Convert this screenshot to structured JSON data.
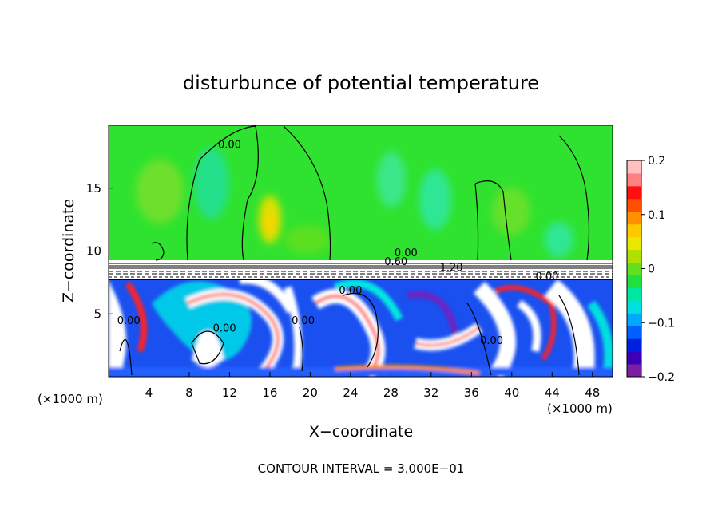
{
  "chart_data": {
    "type": "heatmap",
    "title": "disturbunce of potential temperature",
    "xlabel": "X−coordinate",
    "ylabel": "Z−coordinate",
    "x_unit_label": "(×1000 m)",
    "z_unit_label": "(×1000 m)",
    "xlim": [
      0,
      50
    ],
    "ylim": [
      0,
      20
    ],
    "x_ticks": [
      4,
      8,
      12,
      16,
      20,
      24,
      28,
      32,
      36,
      40,
      44,
      48
    ],
    "y_ticks": [
      5,
      10,
      15
    ],
    "colorbar": {
      "range": [
        -0.2,
        0.2
      ],
      "tick_values": [
        -0.2,
        -0.1,
        0,
        0.1,
        0.2
      ],
      "tick_labels": [
        "−0.2",
        "−0.1",
        "0",
        "0.1",
        "0.2"
      ],
      "colors": [
        "#7a1fa2",
        "#3a00b8",
        "#0020e0",
        "#0060ff",
        "#00a8ff",
        "#00e0e0",
        "#00e8a0",
        "#20e040",
        "#60e020",
        "#b0e000",
        "#e8e800",
        "#ffc800",
        "#ff9000",
        "#ff5000",
        "#ff1010",
        "#ff8080",
        "#ffc0c0"
      ]
    },
    "contour_labels": [
      {
        "text": "0.00",
        "x": 12,
        "z": 18.2
      },
      {
        "text": "0.00",
        "x": 29.5,
        "z": 9.6
      },
      {
        "text": "0.60",
        "x": 28.5,
        "z": 8.9
      },
      {
        "text": "1.20",
        "x": 34,
        "z": 8.4
      },
      {
        "text": "0.00",
        "x": 43.5,
        "z": 7.7
      },
      {
        "text": "0.00",
        "x": 24,
        "z": 6.6
      },
      {
        "text": "0.00",
        "x": 38,
        "z": 2.6
      },
      {
        "text": "0.00",
        "x": 2,
        "z": 4.2
      },
      {
        "text": "0.00",
        "x": 11.5,
        "z": 3.6
      },
      {
        "text": "0.00",
        "x": 19.3,
        "z": 4.2
      }
    ],
    "footer": "CONTOUR INTERVAL = 3.000E−01"
  }
}
